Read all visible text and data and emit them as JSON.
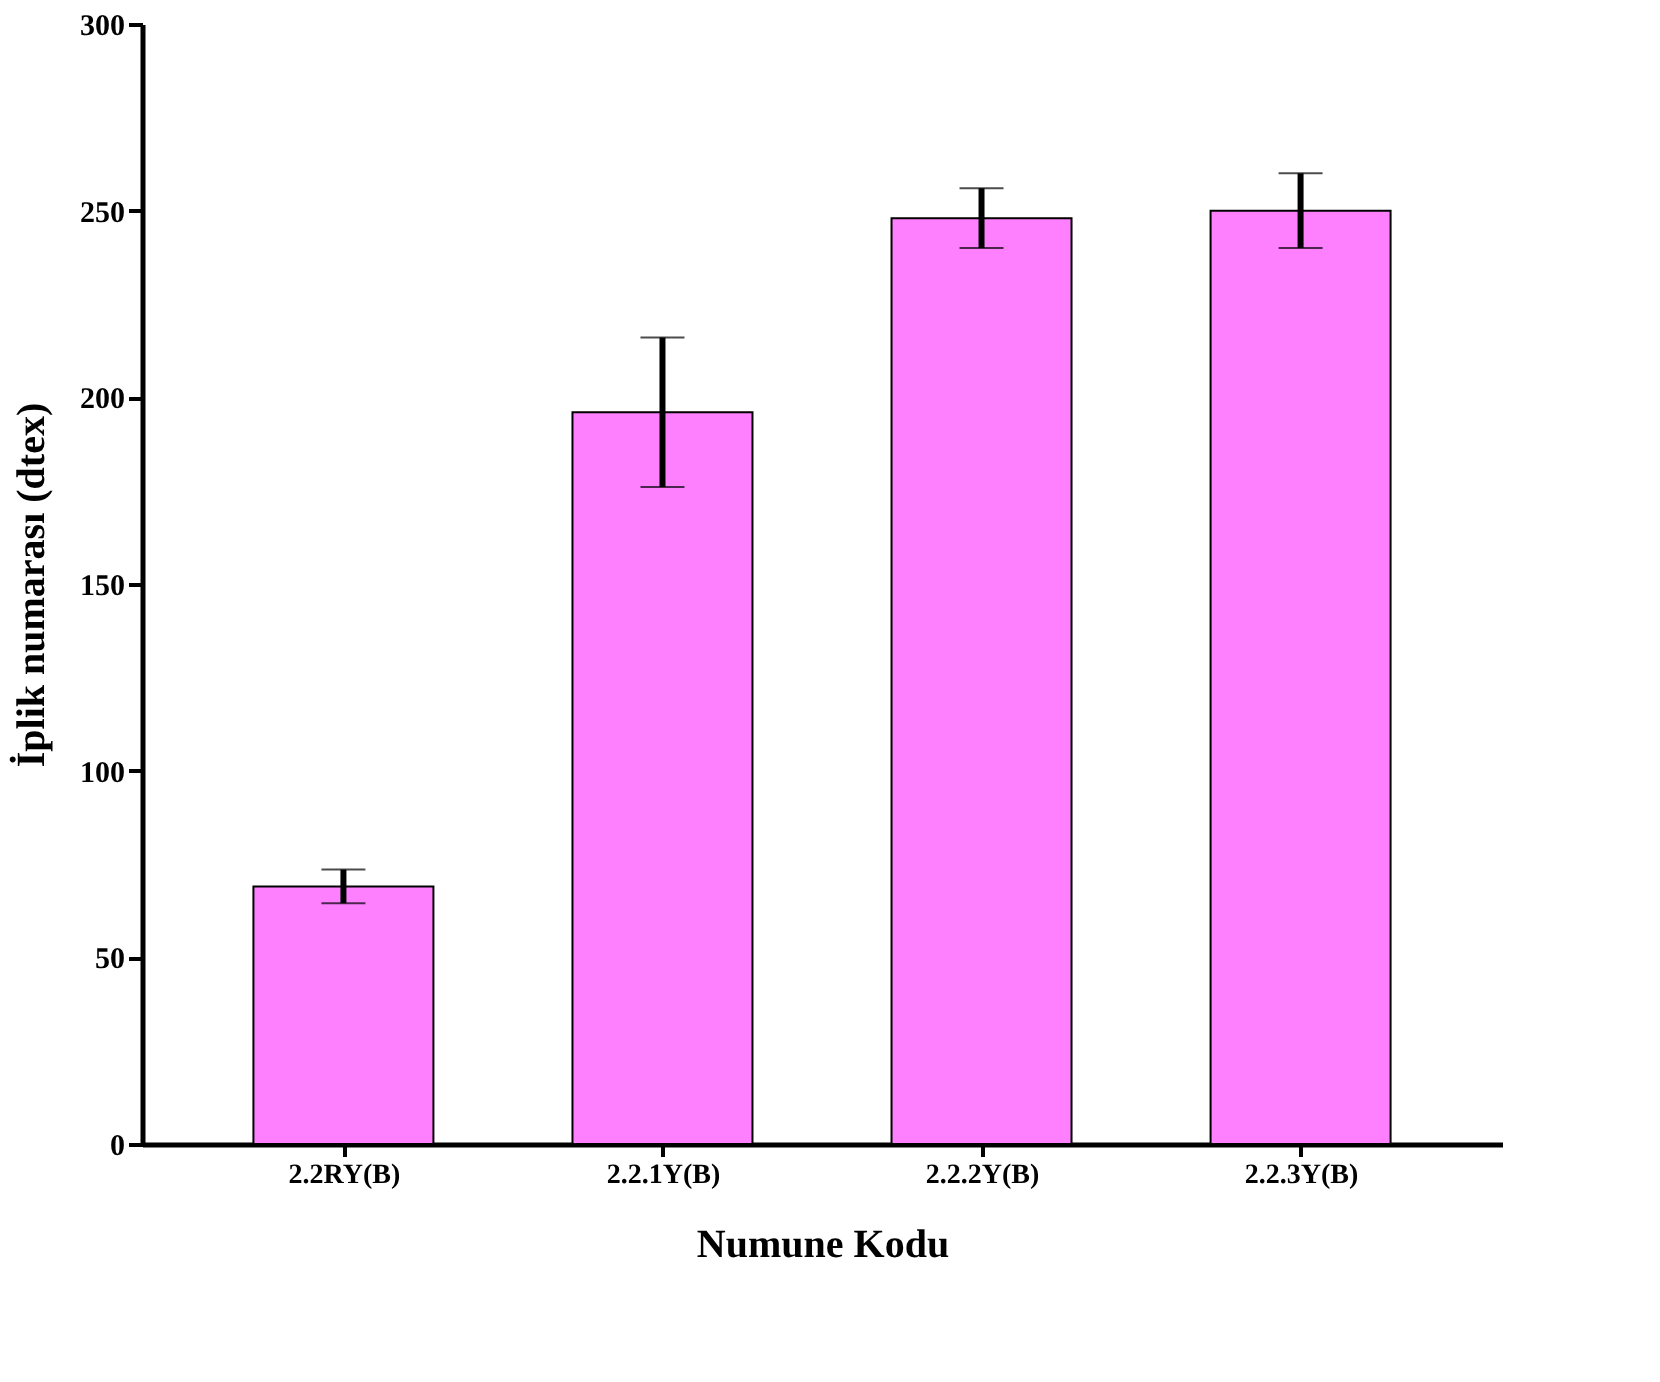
{
  "chart_data": {
    "type": "bar",
    "xlabel": "Numune Kodu",
    "ylabel": "İplik numarası (dtex)",
    "categories": [
      "2.2RY(B)",
      "2.2.1Y(B)",
      "2.2.2Y(B)",
      "2.2.3Y(B)"
    ],
    "values": [
      69,
      196,
      248,
      250
    ],
    "errors": [
      4.5,
      20,
      8,
      10
    ],
    "color": "#ff80ff",
    "ylim": [
      0,
      300
    ],
    "yticks": [
      0,
      50,
      100,
      150,
      200,
      250,
      300
    ],
    "grid": false
  }
}
